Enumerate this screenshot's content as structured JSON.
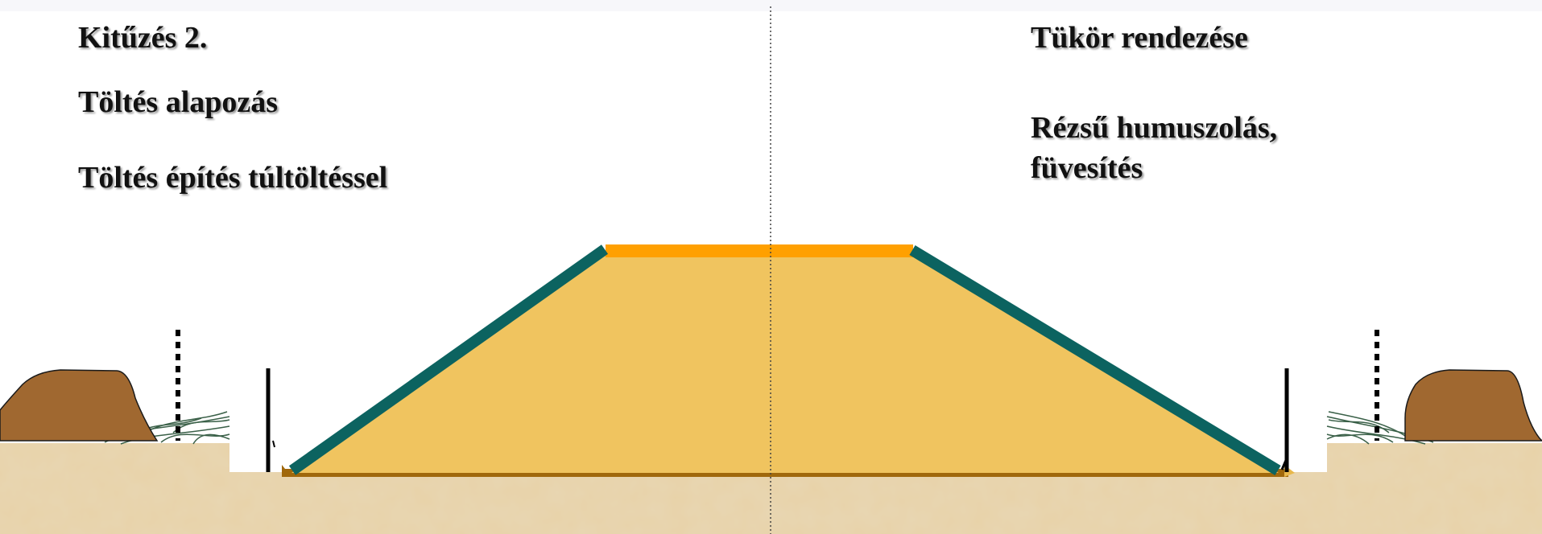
{
  "left_labels": {
    "title": "Kitűzés 2.",
    "foundation": "Töltés alapozás",
    "construction": "Töltés építés túltöltéssel"
  },
  "right_labels": {
    "title": "Tükör rendezése",
    "humus_line1": "Rézsű humuszolás,",
    "humus_line2": "füvesítés"
  },
  "colors": {
    "embankment_fill": "#f0c45f",
    "crown_layer": "#ffa000",
    "slope_topsoil": "#0c6360",
    "base_layer": "#a0680c",
    "soil_heap": "#a06830",
    "ground": "#e8d2a8"
  }
}
